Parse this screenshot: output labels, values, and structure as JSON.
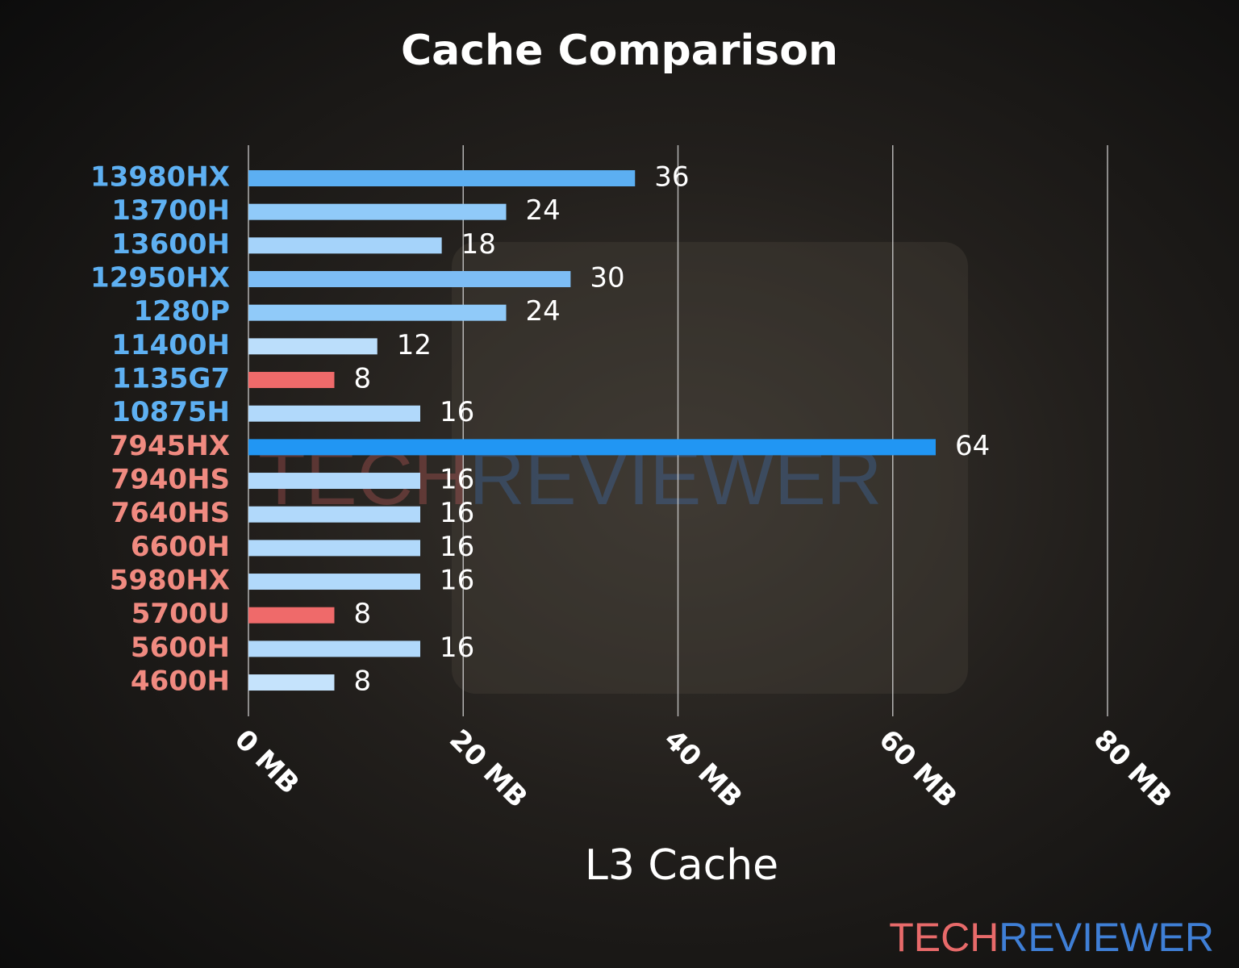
{
  "chart_data": {
    "type": "barh",
    "title": "Cache Comparison",
    "x_label": "L3 Cache",
    "categories": [
      "13980HX",
      "13700H",
      "13600H",
      "12950HX",
      "1280P",
      "11400H",
      "1135G7",
      "10875H",
      "7945HX",
      "7940HS",
      "7640HS",
      "6600H",
      "5980HX",
      "5700U",
      "5600H",
      "4600H"
    ],
    "category_colors": [
      "#5eb0f2",
      "#5eb0f2",
      "#5eb0f2",
      "#5eb0f2",
      "#5eb0f2",
      "#5eb0f2",
      "#5eb0f2",
      "#5eb0f2",
      "#f08a80",
      "#f08a80",
      "#f08a80",
      "#f08a80",
      "#f08a80",
      "#f08a80",
      "#f08a80",
      "#f08a80"
    ],
    "values": [
      36,
      24,
      18,
      30,
      24,
      12,
      8,
      16,
      64,
      16,
      16,
      16,
      16,
      8,
      16,
      8
    ],
    "colors": [
      "#5caff2",
      "#90caf9",
      "#a5d3fa",
      "#7dbdf5",
      "#90caf9",
      "#bbdefb",
      "#ef6a6a",
      "#b1d9fb",
      "#2196f3",
      "#b1d9fb",
      "#b1d9fb",
      "#b1d9fb",
      "#b1d9fb",
      "#ef6a6a",
      "#b1d9fb",
      "#c5e3fc"
    ],
    "xlim": [
      0,
      80
    ],
    "xticks": [
      {
        "value": 0,
        "label": "0 MB"
      },
      {
        "value": 20,
        "label": "20 MB"
      },
      {
        "value": 40,
        "label": "40 MB"
      },
      {
        "value": 60,
        "label": "60 MB"
      },
      {
        "value": 80,
        "label": "80 MB"
      }
    ],
    "grid": true,
    "watermark": [
      {
        "text": "TECH",
        "color": "#e86a6a"
      },
      {
        "text": "REVIEWER",
        "color": "#3f7fd6"
      }
    ]
  }
}
